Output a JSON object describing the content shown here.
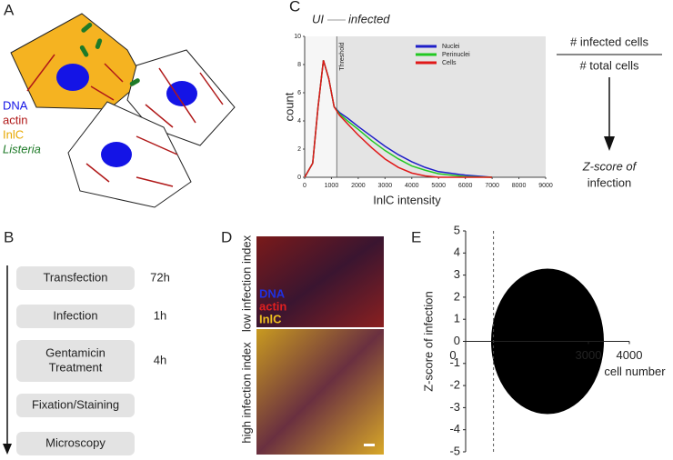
{
  "panels": {
    "A": {
      "label": "A",
      "legend": [
        "DNA",
        "actin",
        "InlC",
        "Listeria"
      ]
    },
    "B": {
      "label": "B",
      "steps": [
        {
          "name": [
            "Transfection"
          ],
          "time": "72h"
        },
        {
          "name": [
            "Infection"
          ],
          "time": "1h"
        },
        {
          "name": [
            "Gentamicin",
            "Treatment"
          ],
          "time": "4h"
        },
        {
          "name": [
            "Fixation/Staining"
          ]
        },
        {
          "name": [
            "Microscopy"
          ]
        }
      ]
    },
    "C": {
      "label": "C",
      "ui": "UI",
      "infected": "infected",
      "threshold": "Threshold",
      "numerator": "# infected cells",
      "denominator": "# total cells",
      "result": [
        "Z-score of",
        "infection"
      ]
    },
    "D": {
      "label": "D",
      "stains": [
        "DNA",
        "actin",
        "InlC"
      ],
      "low": "low infection index",
      "high": "high infection index"
    },
    "E": {
      "label": "E"
    }
  },
  "chart_data": [
    {
      "type": "line",
      "xlabel": "InlC intensity",
      "ylabel": "count",
      "x": [
        0,
        300,
        500,
        700,
        900,
        1100,
        1300,
        1600,
        2000,
        2500,
        3000,
        3500,
        4000,
        4500,
        5000,
        6000,
        7000
      ],
      "series": [
        {
          "name": "Nuclei",
          "color": "#1f1fc8",
          "values": [
            0,
            1,
            5,
            8.3,
            7,
            5,
            4.6,
            4.2,
            3.6,
            2.9,
            2.2,
            1.6,
            1.1,
            0.7,
            0.4,
            0.15,
            0
          ]
        },
        {
          "name": "Perinuclei",
          "color": "#22c822",
          "values": [
            0,
            1,
            5,
            8.3,
            7,
            5,
            4.5,
            4.0,
            3.4,
            2.6,
            1.9,
            1.3,
            0.8,
            0.5,
            0.25,
            0.05,
            0
          ]
        },
        {
          "name": "Cells",
          "color": "#e01818",
          "values": [
            0,
            1,
            5,
            8.3,
            7,
            5,
            4.4,
            3.8,
            3.0,
            2.1,
            1.3,
            0.7,
            0.3,
            0.1,
            0,
            0,
            0
          ]
        }
      ],
      "xlim": [
        0,
        9000
      ],
      "xticks": [
        0,
        1000,
        2000,
        3000,
        4000,
        5000,
        6000,
        7000,
        8000,
        9000
      ],
      "ylim": [
        0,
        10
      ],
      "yticks": [
        0,
        2,
        4,
        6,
        8,
        10
      ],
      "threshold": 1200
    },
    {
      "type": "scatter",
      "xlabel": "cell number",
      "ylabel": "Z-score of infection",
      "xlim": [
        0,
        4000
      ],
      "xticks": [
        0,
        3000,
        4000
      ],
      "ylim": [
        -5,
        5
      ],
      "yticks": [
        -5,
        -4,
        -3,
        -2,
        -1,
        0,
        1,
        2,
        3,
        4,
        5
      ],
      "cutoff": 680
    }
  ]
}
